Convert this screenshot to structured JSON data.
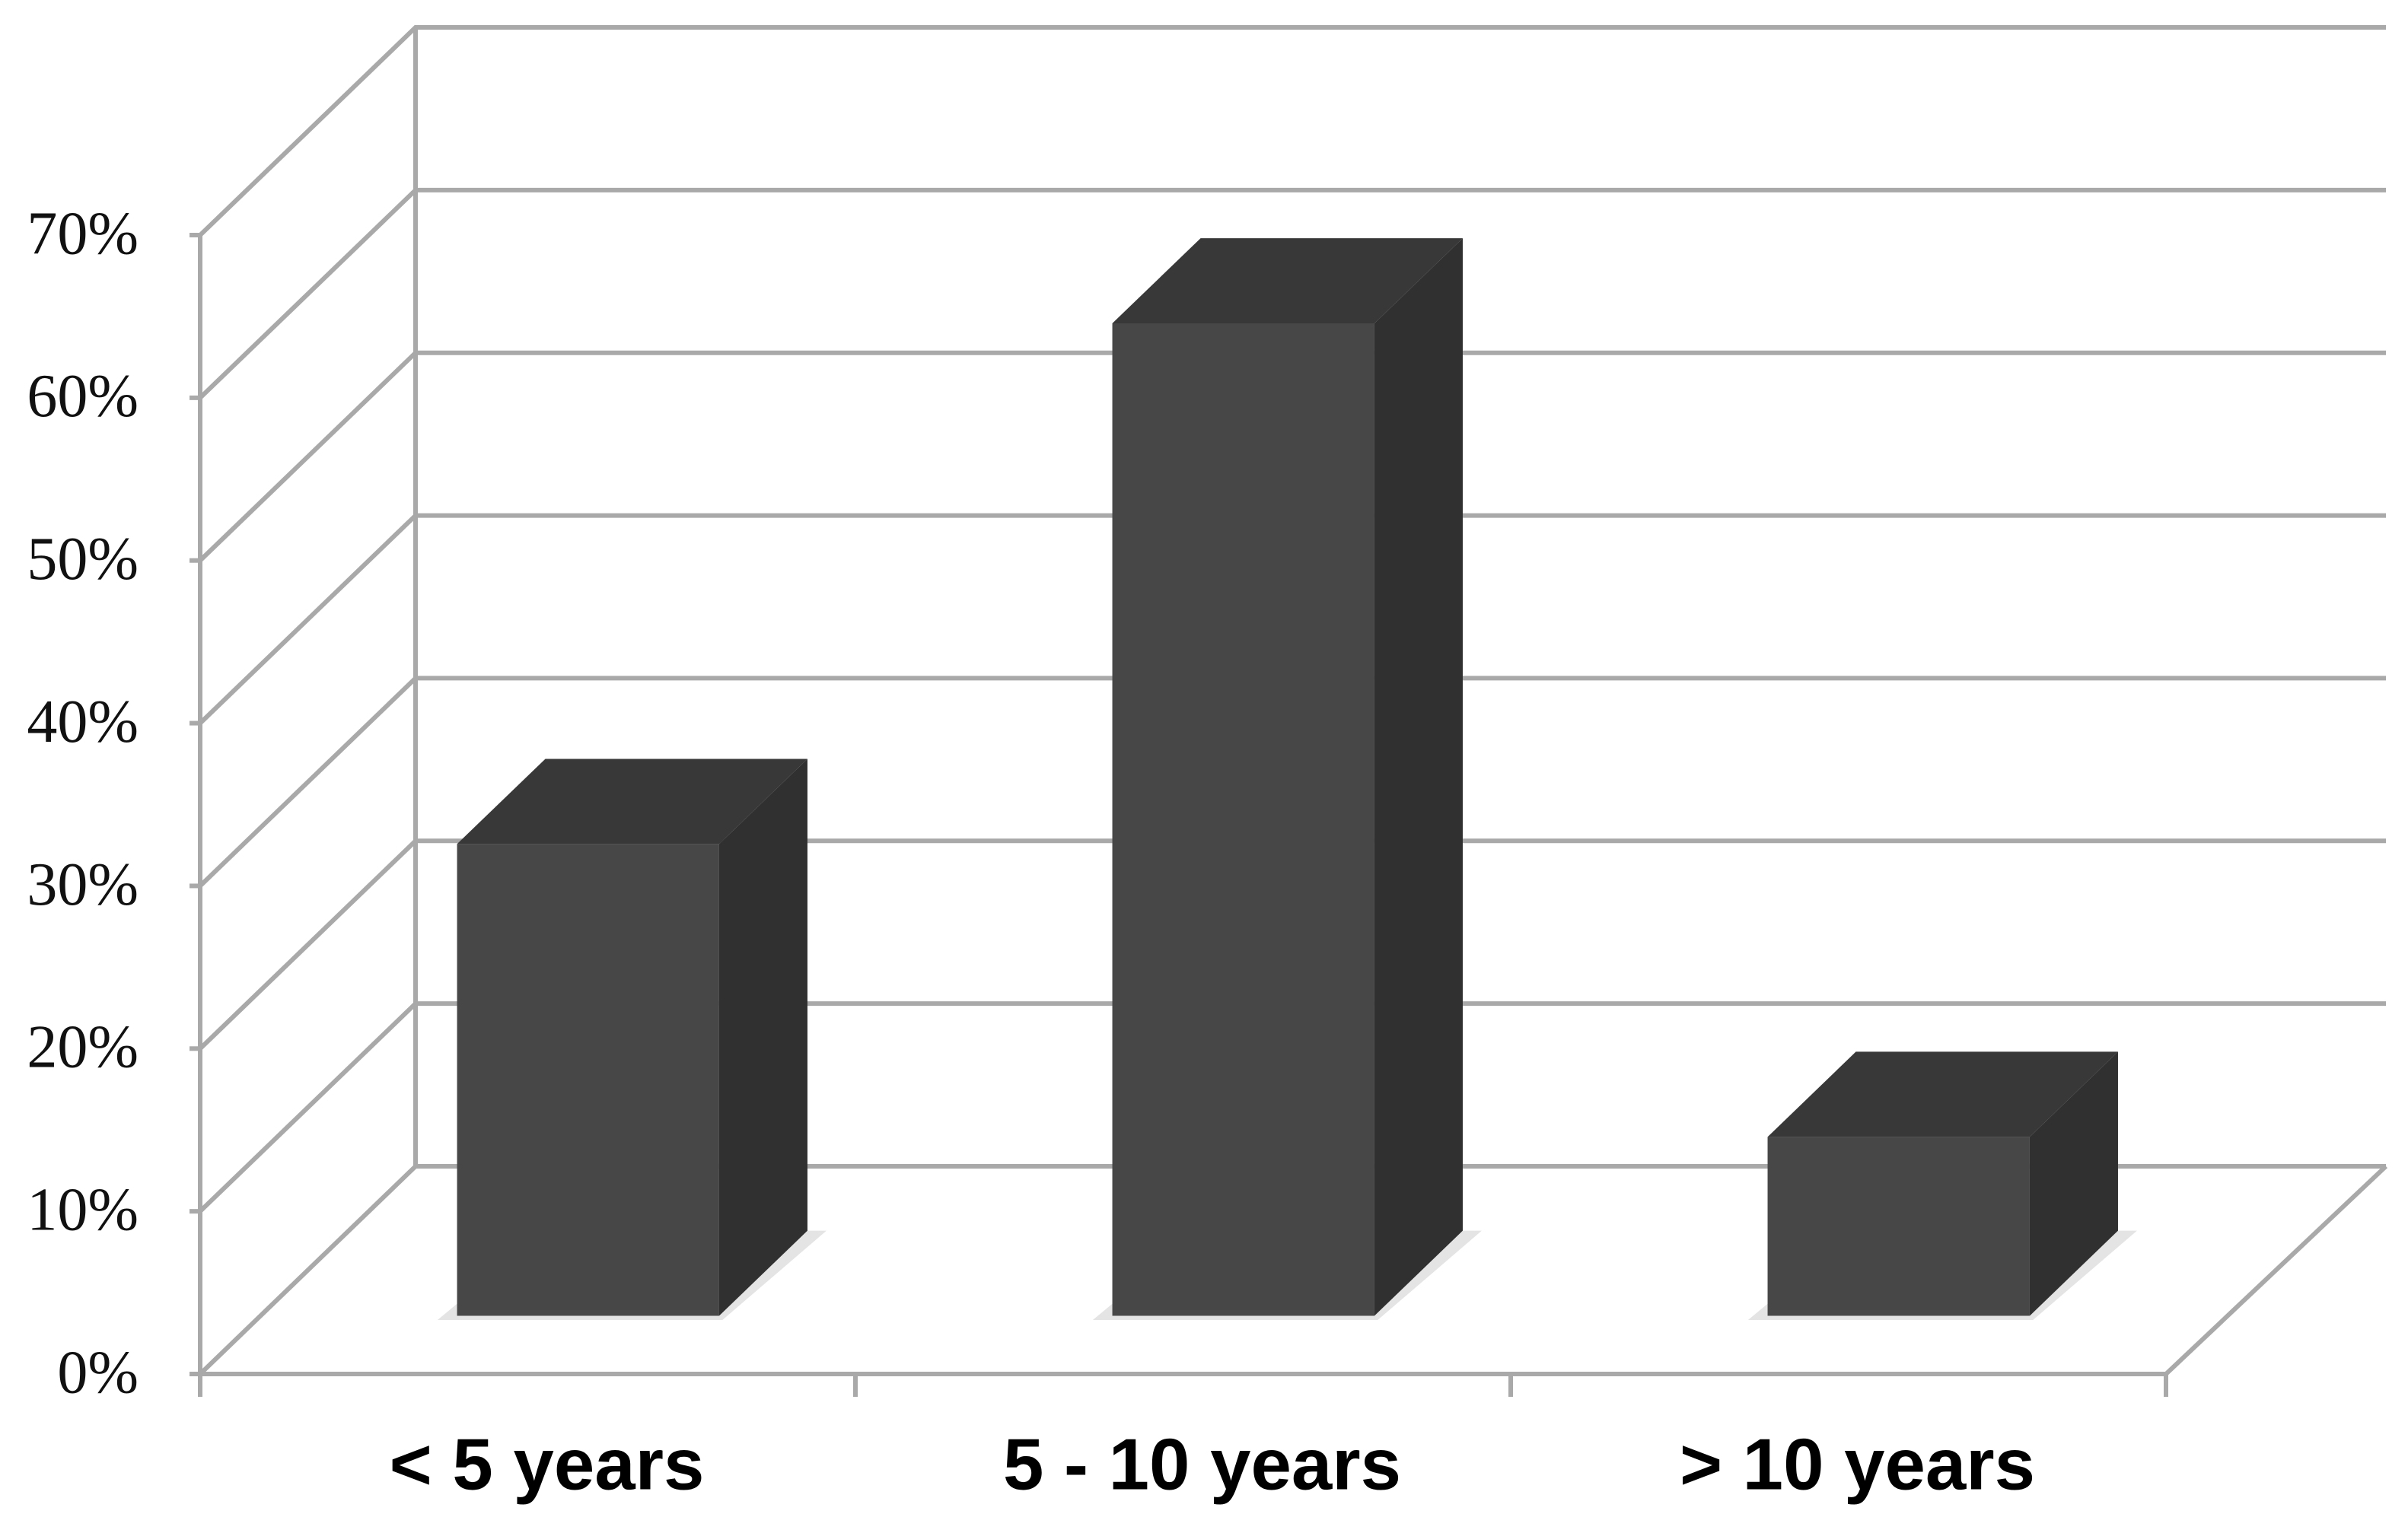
{
  "chart_data": {
    "type": "bar3d",
    "categories": [
      "< 5 years",
      "5 - 10 years",
      "> 10 years"
    ],
    "values": [
      29,
      61,
      11
    ],
    "color": "#474747",
    "ylim": [
      0,
      70
    ],
    "yticks": [
      {
        "value": 0,
        "label": "0%"
      },
      {
        "value": 10,
        "label": "10%"
      },
      {
        "value": 20,
        "label": "20%"
      },
      {
        "value": 30,
        "label": "30%"
      },
      {
        "value": 40,
        "label": "40%"
      },
      {
        "value": 50,
        "label": "50%"
      },
      {
        "value": 60,
        "label": "60%"
      },
      {
        "value": 70,
        "label": "70%"
      }
    ],
    "grid": true
  }
}
